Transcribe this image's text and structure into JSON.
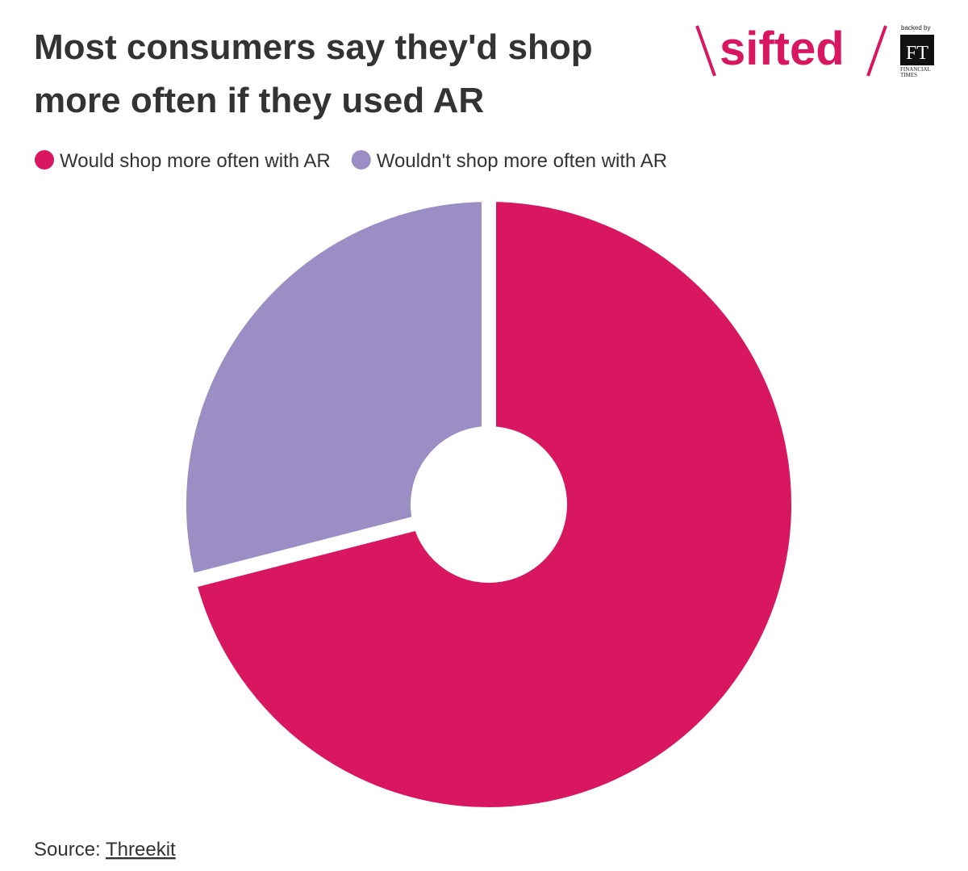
{
  "chart_data": {
    "type": "donut",
    "title": [
      "Most consumers say they'd shop",
      "more often if they used AR"
    ],
    "series": [
      {
        "name": "Would shop more often with AR",
        "color": "#d91660",
        "value": 71
      },
      {
        "name": "Wouldn't shop more often with AR",
        "color": "#9b8ec4",
        "value": 29
      }
    ],
    "source_label": "Source:",
    "source": "Threekit"
  },
  "logo": {
    "brand": "sifted",
    "backed_by": "backed by",
    "ft": "FT",
    "ft_name": [
      "FINANCIAL",
      "TIMES"
    ]
  }
}
